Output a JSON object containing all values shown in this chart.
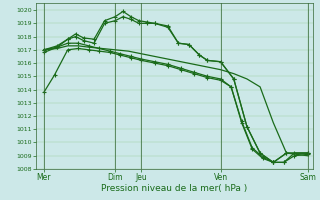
{
  "bg_color": "#cce8e8",
  "grid_color": "#99cc99",
  "line_color": "#1a6b1a",
  "xlabel": "Pression niveau de la mer( hPa )",
  "ylim": [
    1008,
    1020.5
  ],
  "xlim": [
    0,
    10.5
  ],
  "yticks": [
    1008,
    1009,
    1010,
    1011,
    1012,
    1013,
    1014,
    1015,
    1016,
    1017,
    1018,
    1019,
    1020
  ],
  "xtick_pos": [
    0.3,
    3.0,
    4.0,
    7.0,
    10.3
  ],
  "xtick_lbl": [
    "Mer",
    "Dim",
    "Jeu",
    "Ven",
    "Sam"
  ],
  "vlines": [
    0.3,
    3.0,
    4.0,
    7.0,
    10.3
  ],
  "series_A_x": [
    0.3,
    0.7,
    1.2,
    1.6,
    2.0,
    2.4,
    2.8,
    3.2,
    3.6,
    4.0,
    4.5,
    5.0,
    5.5,
    6.0,
    6.5,
    7.0,
    7.4,
    7.8,
    8.2,
    8.6,
    9.0,
    9.4,
    9.8,
    10.3
  ],
  "series_A_y": [
    1013.8,
    1015.1,
    1017.0,
    1017.1,
    1017.0,
    1016.9,
    1016.8,
    1016.6,
    1016.4,
    1016.2,
    1016.0,
    1015.8,
    1015.5,
    1015.2,
    1014.9,
    1014.7,
    1014.2,
    1011.5,
    1009.5,
    1008.8,
    1008.5,
    1008.5,
    1009.2,
    1009.2
  ],
  "series_B_x": [
    0.3,
    0.8,
    1.2,
    1.6,
    2.0,
    2.4,
    2.8,
    3.2,
    3.6,
    4.0,
    4.5,
    5.0,
    5.5,
    6.0,
    6.5,
    7.0,
    7.4,
    7.8,
    8.2,
    8.6,
    9.0,
    9.4,
    9.8,
    10.3
  ],
  "series_B_y": [
    1017.0,
    1017.2,
    1017.5,
    1017.5,
    1017.3,
    1017.1,
    1016.9,
    1016.7,
    1016.5,
    1016.3,
    1016.1,
    1015.9,
    1015.6,
    1015.3,
    1015.0,
    1014.8,
    1014.2,
    1011.6,
    1009.6,
    1008.9,
    1008.5,
    1008.5,
    1009.0,
    1009.1
  ],
  "series_C_x": [
    0.3,
    0.8,
    1.2,
    1.6,
    2.0,
    2.5,
    3.0,
    3.5,
    4.0,
    4.5,
    5.0,
    5.5,
    6.0,
    6.5,
    7.0,
    7.5,
    8.0,
    8.5,
    9.0,
    9.5,
    10.3
  ],
  "series_C_y": [
    1017.0,
    1017.1,
    1017.3,
    1017.3,
    1017.2,
    1017.1,
    1017.0,
    1016.9,
    1016.7,
    1016.5,
    1016.3,
    1016.1,
    1015.9,
    1015.7,
    1015.5,
    1015.2,
    1014.8,
    1014.2,
    1011.5,
    1009.2,
    1009.0
  ],
  "series_D_x": [
    0.3,
    0.8,
    1.2,
    1.5,
    1.8,
    2.2,
    2.6,
    3.0,
    3.3,
    3.6,
    3.9,
    4.2,
    4.5,
    5.0,
    5.4,
    5.8,
    6.2,
    6.5,
    7.0,
    7.5,
    8.0,
    8.5,
    9.0,
    9.5,
    10.3
  ],
  "series_D_y": [
    1017.0,
    1017.3,
    1017.8,
    1018.0,
    1017.7,
    1017.5,
    1019.0,
    1019.2,
    1019.5,
    1019.3,
    1019.0,
    1019.0,
    1019.0,
    1018.7,
    1017.5,
    1017.4,
    1016.6,
    1016.2,
    1016.1,
    1014.8,
    1011.2,
    1009.2,
    1008.5,
    1009.2,
    1009.2
  ],
  "series_E_x": [
    0.3,
    0.8,
    1.2,
    1.5,
    1.8,
    2.2,
    2.6,
    3.0,
    3.3,
    3.6,
    3.9,
    4.2,
    4.5,
    5.0,
    5.4,
    5.8,
    6.2,
    6.5,
    7.0,
    7.5,
    8.0,
    8.5,
    9.0,
    9.5,
    10.3
  ],
  "series_E_y": [
    1016.8,
    1017.2,
    1017.8,
    1018.2,
    1017.9,
    1017.8,
    1019.2,
    1019.5,
    1019.9,
    1019.5,
    1019.2,
    1019.1,
    1019.0,
    1018.8,
    1017.5,
    1017.4,
    1016.6,
    1016.2,
    1016.1,
    1014.8,
    1011.2,
    1009.2,
    1008.5,
    1009.2,
    1009.2
  ]
}
